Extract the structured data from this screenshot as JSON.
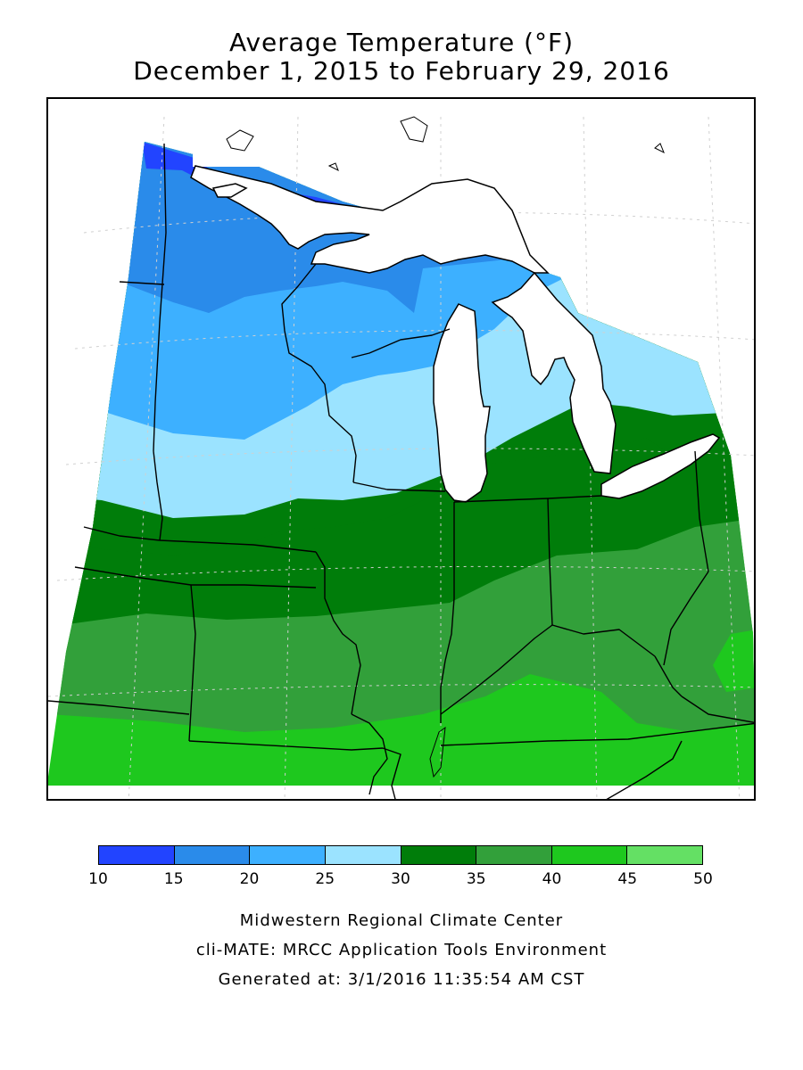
{
  "title": {
    "line1": "Average Temperature (°F)",
    "line2": "December 1, 2015 to February 29, 2016"
  },
  "legend": {
    "tick_labels": [
      "10",
      "15",
      "20",
      "25",
      "30",
      "35",
      "40",
      "45",
      "50"
    ],
    "bins": [
      {
        "range": "10-15",
        "color": "#2244ff"
      },
      {
        "range": "15-20",
        "color": "#2a8bea"
      },
      {
        "range": "20-25",
        "color": "#3db0ff"
      },
      {
        "range": "25-30",
        "color": "#9be3ff"
      },
      {
        "range": "30-35",
        "color": "#007d0a"
      },
      {
        "range": "35-40",
        "color": "#32a03a"
      },
      {
        "range": "40-45",
        "color": "#1ec81e"
      },
      {
        "range": "45-50",
        "color": "#64e064"
      }
    ]
  },
  "credits": {
    "line1": "Midwestern Regional Climate Center",
    "line2": "cli-MATE: MRCC Application Tools Environment",
    "line3": "Generated at: 3/1/2016 11:35:54 AM CST"
  }
}
